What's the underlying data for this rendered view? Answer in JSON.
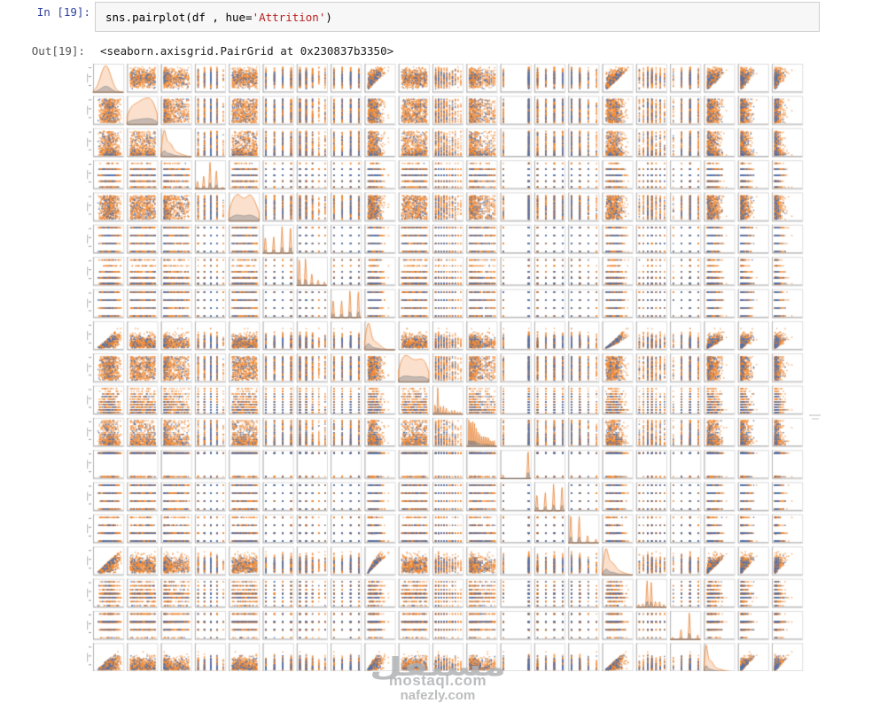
{
  "notebook": {
    "input_prompt": "In [19]:",
    "output_prompt": "Out[19]:",
    "code": {
      "prefix": "sns.pairplot(df , hue=",
      "string": "'Attrition'",
      "suffix": ")"
    },
    "output_text": "<seaborn.axisgrid.PairGrid at 0x230837b3350>",
    "colors": {
      "in_prompt": "#303F9F",
      "out_prompt": "#545454",
      "code_string": "#BA2121",
      "cell_bg": "#F7F7F7",
      "cell_border": "#CFCFCF"
    }
  },
  "watermark": {
    "logo": "مستقل",
    "line1": "mostaql.com",
    "line2": "nafezly.com"
  },
  "chart_data": {
    "type": "scatter",
    "subtype": "pairplot-scatter-matrix",
    "title": "",
    "hue_source_code": "Attrition",
    "grid": {
      "rows": 21,
      "cols": 21,
      "visible_rows": 19,
      "bottom_truncated": true
    },
    "legend": "not visible (cut off)",
    "axis_tick_labels": "illegible at this scale",
    "seed": 42,
    "samples": {
      "majority": 520,
      "minority": 70
    },
    "colors": {
      "majority_point": "#ED8733",
      "minority_point": "#4C72B0",
      "kde_fill": "rgba(238,140,60,0.26)",
      "kde_stroke": "rgba(230,125,45,0.9)",
      "kde2_fill": "rgba(128,133,140,0.42)",
      "kde2_stroke": "rgba(110,115,122,0.75)",
      "spine_light": "#dcdcdc",
      "spine_dark": "#b3b3b3",
      "tick_smudge": "rgba(120,120,120,0.75)",
      "label_smudge": "rgba(140,140,140,0.55)"
    },
    "variables": [
      {
        "gen": "bell"
      },
      {
        "gen": "uniform"
      },
      {
        "gen": "rskew"
      },
      {
        "gen": "disc",
        "levels": 5,
        "weights": [
          12,
          19,
          39,
          27,
          3
        ]
      },
      {
        "gen": "uniform"
      },
      {
        "gen": "disc",
        "levels": 4,
        "weights": [
          19,
          19,
          31,
          31
        ]
      },
      {
        "gen": "disc",
        "levels": 5,
        "weights": [
          37,
          36,
          15,
          7,
          5
        ]
      },
      {
        "gen": "disc",
        "levels": 4,
        "weights": [
          20,
          19,
          30,
          31
        ]
      },
      {
        "gen": "income"
      },
      {
        "gen": "uniform"
      },
      {
        "gen": "disc",
        "levels": 10,
        "weights": [
          14,
          36,
          10,
          11,
          9,
          4,
          5,
          5,
          3,
          3
        ]
      },
      {
        "gen": "disc",
        "levels": 15,
        "weights": [
          14,
          14,
          13,
          11,
          8,
          6,
          5,
          4,
          4,
          4,
          4,
          4,
          3,
          3,
          3
        ]
      },
      {
        "gen": "disc",
        "levels": 2,
        "weights": [
          12,
          88
        ]
      },
      {
        "gen": "disc",
        "levels": 4,
        "weights": [
          19,
          21,
          31,
          29
        ]
      },
      {
        "gen": "disc",
        "levels": 4,
        "weights": [
          43,
          40,
          11,
          6
        ]
      },
      {
        "gen": "twy"
      },
      {
        "gen": "disc",
        "levels": 7,
        "weights": [
          4,
          5,
          37,
          34,
          8,
          8,
          4
        ]
      },
      {
        "gen": "disc",
        "levels": 4,
        "weights": [
          5,
          23,
          61,
          11
        ]
      },
      {
        "gen": "yac"
      },
      {
        "gen": "yq",
        "levels": 19,
        "pow": 1
      },
      {
        "gen": "yq",
        "levels": 16,
        "pow": 1.6
      }
    ]
  }
}
